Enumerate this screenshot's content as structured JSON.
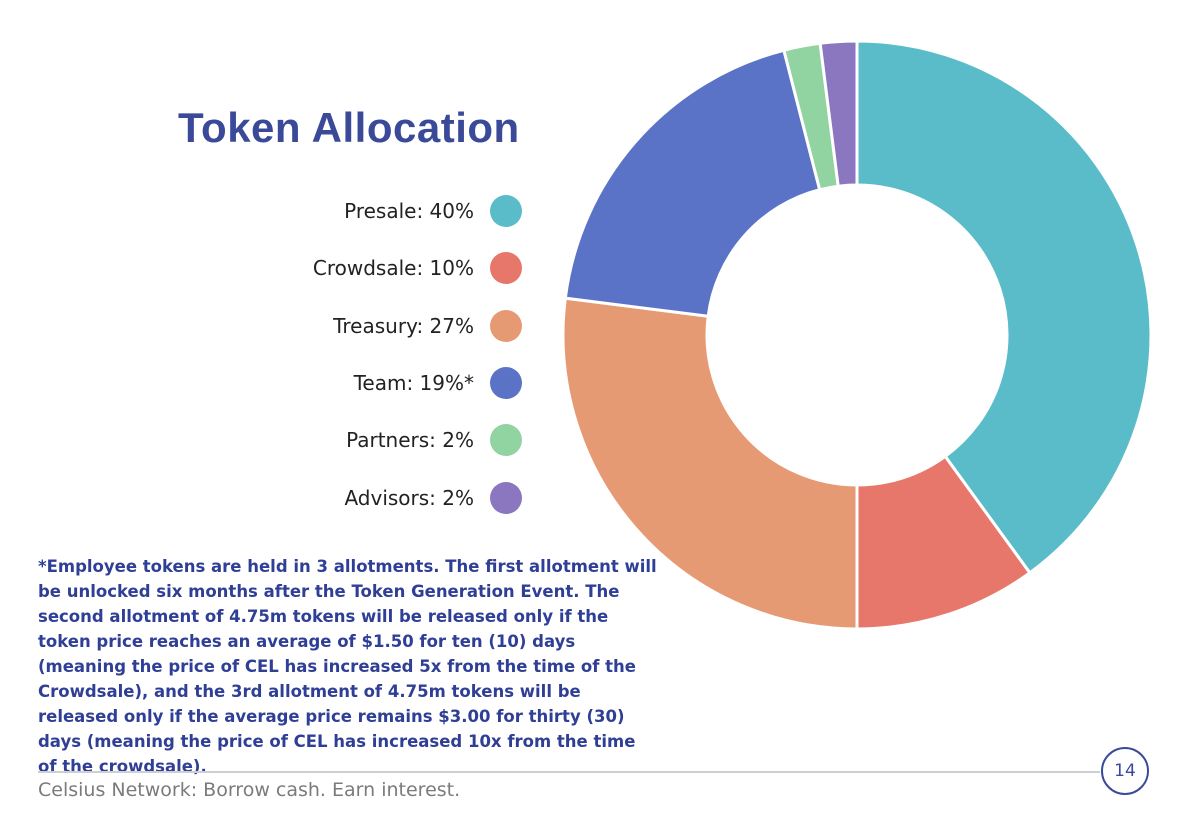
{
  "chart_data": {
    "type": "pie",
    "title": "Token Allocation",
    "donut": true,
    "slices": [
      {
        "label": "Presale: 40%",
        "value": 40,
        "color": "#5bbcc9"
      },
      {
        "label": "Crowdsale: 10%",
        "value": 10,
        "color": "#e8776b"
      },
      {
        "label": "Treasury: 27%",
        "value": 27,
        "color": "#e69a74"
      },
      {
        "label": "Team: 19%*",
        "value": 19,
        "color": "#5b73c7"
      },
      {
        "label": "Partners: 2%",
        "value": 2,
        "color": "#92d3a2"
      },
      {
        "label": "Advisors: 2%",
        "value": 2,
        "color": "#8b76c0"
      }
    ]
  },
  "footnote": "*Employee tokens are held in 3 allotments. The first allotment will be unlocked six months after the Token Generation Event. The second allotment of 4.75m tokens will be released only if the token price reaches an average of $1.50 for ten (10) days (meaning the price of CEL has increased 5x from the time of the Crowdsale),  and the 3rd allotment of 4.75m tokens will be released only if the average price remains $3.00 for thirty (30) days (meaning the price of CEL has increased 10x from the time of the crowdsale).",
  "footer": {
    "tagline": "Celsius Network: Borrow cash. Earn interest.",
    "page_number": "14"
  }
}
